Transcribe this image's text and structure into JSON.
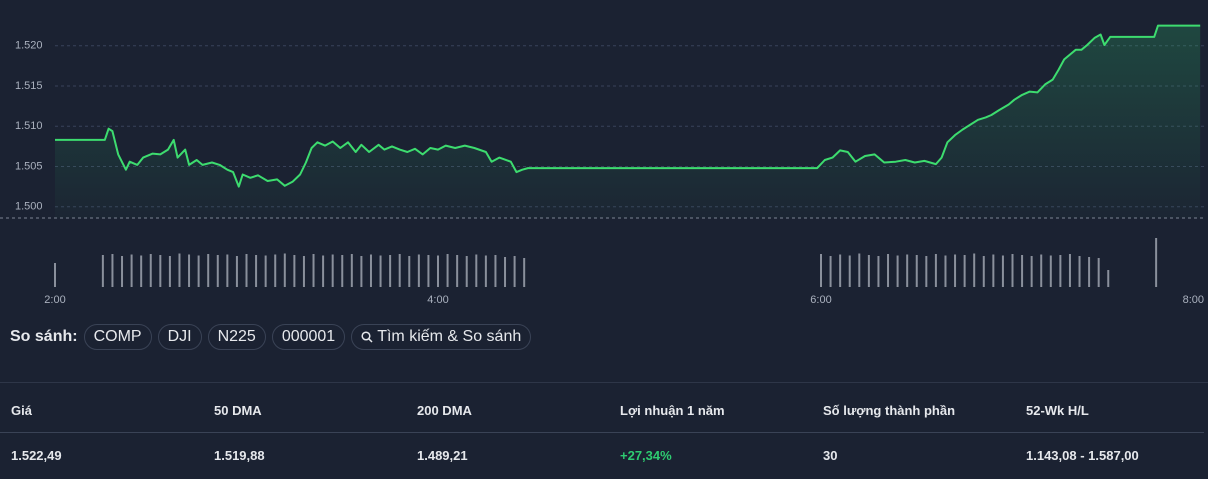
{
  "chart_data": {
    "type": "line",
    "x": [
      2.0,
      2.26,
      2.28,
      2.3,
      2.33,
      2.37,
      2.39,
      2.43,
      2.46,
      2.51,
      2.55,
      2.59,
      2.62,
      2.64,
      2.68,
      2.7,
      2.74,
      2.77,
      2.82,
      2.86,
      2.9,
      2.93,
      2.96,
      2.98,
      3.02,
      3.06,
      3.11,
      3.16,
      3.2,
      3.24,
      3.28,
      3.31,
      3.34,
      3.37,
      3.41,
      3.45,
      3.49,
      3.53,
      3.57,
      3.6,
      3.64,
      3.69,
      3.72,
      3.76,
      3.8,
      3.84,
      3.88,
      3.92,
      3.96,
      4.0,
      4.04,
      4.09,
      4.14,
      4.19,
      4.25,
      4.28,
      4.32,
      4.38,
      4.41,
      4.44,
      4.47,
      5.98,
      6.02,
      6.06,
      6.1,
      6.14,
      6.18,
      6.23,
      6.28,
      6.33,
      6.39,
      6.44,
      6.49,
      6.54,
      6.6,
      6.63,
      6.66,
      6.7,
      6.74,
      6.78,
      6.82,
      6.86,
      6.89,
      6.93,
      6.98,
      7.01,
      7.05,
      7.09,
      7.13,
      7.17,
      7.21,
      7.24,
      7.27,
      7.3,
      7.33,
      7.36,
      7.39,
      7.43,
      7.46,
      7.48,
      7.51,
      7.74,
      7.76,
      7.98
    ],
    "values": [
      1508.3,
      1508.3,
      1509.7,
      1509.4,
      1506.5,
      1504.6,
      1505.6,
      1505.2,
      1506.1,
      1506.6,
      1506.5,
      1507.1,
      1508.3,
      1506.1,
      1507.1,
      1505.2,
      1505.8,
      1505.2,
      1505.5,
      1505.2,
      1504.6,
      1504.3,
      1502.5,
      1504.0,
      1503.6,
      1503.9,
      1503.2,
      1503.4,
      1502.6,
      1503.1,
      1504.0,
      1505.5,
      1507.3,
      1508.0,
      1507.6,
      1508.1,
      1507.3,
      1508.0,
      1506.8,
      1507.7,
      1506.8,
      1507.7,
      1507.1,
      1507.5,
      1507.1,
      1506.8,
      1507.2,
      1506.5,
      1507.3,
      1507.1,
      1507.6,
      1507.3,
      1507.6,
      1507.3,
      1506.8,
      1505.6,
      1506.1,
      1505.6,
      1504.3,
      1504.6,
      1504.8,
      1504.8,
      1505.8,
      1506.1,
      1507.0,
      1506.8,
      1505.6,
      1506.3,
      1506.5,
      1505.5,
      1505.6,
      1505.8,
      1505.5,
      1505.7,
      1505.3,
      1506.1,
      1508.0,
      1508.9,
      1509.6,
      1510.2,
      1510.8,
      1511.1,
      1511.4,
      1512.0,
      1512.7,
      1513.3,
      1513.9,
      1514.3,
      1514.2,
      1515.2,
      1515.8,
      1517.0,
      1518.3,
      1518.9,
      1519.5,
      1519.5,
      1520.1,
      1521.0,
      1521.4,
      1520.1,
      1521.1,
      1521.1,
      1522.5,
      1522.5
    ],
    "color": "#3ddc6f",
    "xlim": [
      2,
      8
    ],
    "xticks": [
      {
        "value": 2,
        "label": "2:00"
      },
      {
        "value": 4,
        "label": "4:00"
      },
      {
        "value": 6,
        "label": "6:00"
      },
      {
        "value": 8,
        "label": "8:00"
      }
    ],
    "ylim": [
      1498.6,
      1523.2
    ],
    "yticks": [
      {
        "value": 1500,
        "label": "1.500"
      },
      {
        "value": 1505,
        "label": "1.505"
      },
      {
        "value": 1510,
        "label": "1.510"
      },
      {
        "value": 1515,
        "label": "1.515"
      },
      {
        "value": 1520,
        "label": "1.520"
      }
    ],
    "grid": true,
    "volume": {
      "color": "#8a909c",
      "ylim": [
        0,
        100
      ],
      "x": [
        2.0,
        2.25,
        2.3,
        2.35,
        2.4,
        2.45,
        2.5,
        2.55,
        2.6,
        2.65,
        2.7,
        2.75,
        2.8,
        2.85,
        2.9,
        2.95,
        3,
        3.05,
        3.1,
        3.15,
        3.2,
        3.25,
        3.3,
        3.35,
        3.4,
        3.45,
        3.5,
        3.55,
        3.6,
        3.65,
        3.7,
        3.75,
        3.8,
        3.85,
        3.9,
        3.95,
        4,
        4.05,
        4.1,
        4.15,
        4.2,
        4.25,
        4.3,
        4.35,
        4.4,
        4.45,
        6,
        6.05,
        6.1,
        6.15,
        6.2,
        6.25,
        6.3,
        6.35,
        6.4,
        6.45,
        6.5,
        6.55,
        6.6,
        6.65,
        6.7,
        6.75,
        6.8,
        6.85,
        6.9,
        6.95,
        7,
        7.05,
        7.1,
        7.15,
        7.2,
        7.25,
        7.3,
        7.35,
        7.4,
        7.45,
        7.5,
        7.75
      ],
      "values": [
        48,
        64,
        66,
        62,
        65,
        63,
        66,
        64,
        62,
        67,
        65,
        63,
        66,
        64,
        65,
        62,
        66,
        64,
        63,
        65,
        67,
        64,
        62,
        66,
        63,
        65,
        64,
        66,
        62,
        65,
        63,
        64,
        66,
        62,
        65,
        64,
        63,
        66,
        64,
        62,
        65,
        63,
        64,
        60,
        62,
        58,
        66,
        62,
        65,
        63,
        67,
        64,
        62,
        66,
        63,
        65,
        64,
        62,
        66,
        63,
        65,
        64,
        67,
        62,
        65,
        63,
        66,
        64,
        62,
        65,
        63,
        64,
        66,
        62,
        60,
        58,
        34,
        98
      ]
    }
  },
  "compare": {
    "label": "So sánh:",
    "items": [
      "COMP",
      "DJI",
      "N225",
      "000001"
    ],
    "search": "Tìm kiếm & So sánh"
  },
  "stats": {
    "headers": [
      "Giá",
      "50 DMA",
      "200 DMA",
      "Lợi nhuận 1 năm",
      "Số lượng thành phần",
      "52-Wk H/L"
    ],
    "values": [
      "1.522,49",
      "1.519,88",
      "1.489,21",
      "+27,34%",
      "30",
      "1.143,08 - 1.587,00"
    ]
  }
}
